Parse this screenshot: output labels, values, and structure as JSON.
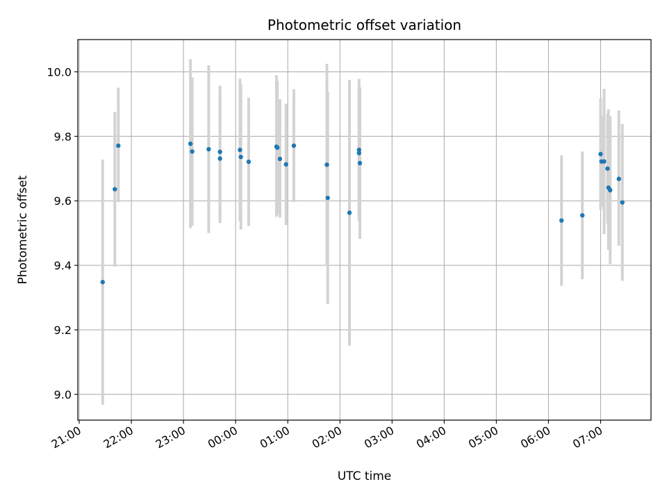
{
  "chart_data": {
    "type": "scatter",
    "title": "Photometric offset variation",
    "xlabel": "UTC time",
    "ylabel": "Photometric offset",
    "x_axis_type": "time",
    "xlim": [
      "21:00",
      "07:58"
    ],
    "ylim": [
      8.92,
      10.1
    ],
    "xticks": [
      "21:00",
      "22:00",
      "23:00",
      "00:00",
      "01:00",
      "02:00",
      "03:00",
      "04:00",
      "05:00",
      "06:00",
      "07:00"
    ],
    "yticks": [
      9.0,
      9.2,
      9.4,
      9.6,
      9.8,
      10.0
    ],
    "grid": true,
    "point_color": "#1f77b4",
    "errorbar_color": "#d3d3d3",
    "points": [
      {
        "time": "21:27",
        "y": 9.348,
        "lo": 8.968,
        "hi": 9.728
      },
      {
        "time": "21:41",
        "y": 9.636,
        "lo": 9.396,
        "hi": 9.876
      },
      {
        "time": "21:45",
        "y": 9.771,
        "lo": 9.596,
        "hi": 9.951
      },
      {
        "time": "23:08",
        "y": 9.777,
        "lo": 9.515,
        "hi": 10.039
      },
      {
        "time": "23:10",
        "y": 9.753,
        "lo": 9.523,
        "hi": 9.983
      },
      {
        "time": "23:29",
        "y": 9.76,
        "lo": 9.5,
        "hi": 10.02
      },
      {
        "time": "23:42",
        "y": 9.752,
        "lo": 9.547,
        "hi": 9.957
      },
      {
        "time": "23:42",
        "y": 9.731,
        "lo": 9.531,
        "hi": 9.931
      },
      {
        "time": "00:05",
        "y": 9.758,
        "lo": 9.537,
        "hi": 9.979
      },
      {
        "time": "00:06",
        "y": 9.736,
        "lo": 9.511,
        "hi": 9.961
      },
      {
        "time": "00:15",
        "y": 9.721,
        "lo": 9.522,
        "hi": 9.92
      },
      {
        "time": "00:47",
        "y": 9.768,
        "lo": 9.551,
        "hi": 9.99
      },
      {
        "time": "00:48",
        "y": 9.765,
        "lo": 9.558,
        "hi": 9.972
      },
      {
        "time": "00:51",
        "y": 9.73,
        "lo": 9.548,
        "hi": 9.915
      },
      {
        "time": "00:58",
        "y": 9.713,
        "lo": 9.525,
        "hi": 9.901
      },
      {
        "time": "01:07",
        "y": 9.771,
        "lo": 9.596,
        "hi": 9.946
      },
      {
        "time": "01:45",
        "y": 9.712,
        "lo": 9.399,
        "hi": 10.025
      },
      {
        "time": "01:46",
        "y": 9.609,
        "lo": 9.28,
        "hi": 9.938
      },
      {
        "time": "02:11",
        "y": 9.563,
        "lo": 9.151,
        "hi": 9.975
      },
      {
        "time": "02:22",
        "y": 9.758,
        "lo": 9.538,
        "hi": 9.978
      },
      {
        "time": "02:22",
        "y": 9.748,
        "lo": 9.548,
        "hi": 9.948
      },
      {
        "time": "02:23",
        "y": 9.717,
        "lo": 9.482,
        "hi": 9.952
      },
      {
        "time": "06:15",
        "y": 9.539,
        "lo": 9.337,
        "hi": 9.741
      },
      {
        "time": "06:39",
        "y": 9.555,
        "lo": 9.357,
        "hi": 9.753
      },
      {
        "time": "07:00",
        "y": 9.745,
        "lo": 9.572,
        "hi": 9.918
      },
      {
        "time": "07:01",
        "y": 9.722,
        "lo": 9.582,
        "hi": 9.862
      },
      {
        "time": "07:04",
        "y": 9.722,
        "lo": 9.497,
        "hi": 9.947
      },
      {
        "time": "07:08",
        "y": 9.7,
        "lo": 9.53,
        "hi": 9.87
      },
      {
        "time": "07:09",
        "y": 9.641,
        "lo": 9.448,
        "hi": 9.884
      },
      {
        "time": "07:11",
        "y": 9.633,
        "lo": 9.404,
        "hi": 9.862
      },
      {
        "time": "07:21",
        "y": 9.668,
        "lo": 9.461,
        "hi": 9.88
      },
      {
        "time": "07:25",
        "y": 9.595,
        "lo": 9.352,
        "hi": 9.838
      }
    ]
  }
}
